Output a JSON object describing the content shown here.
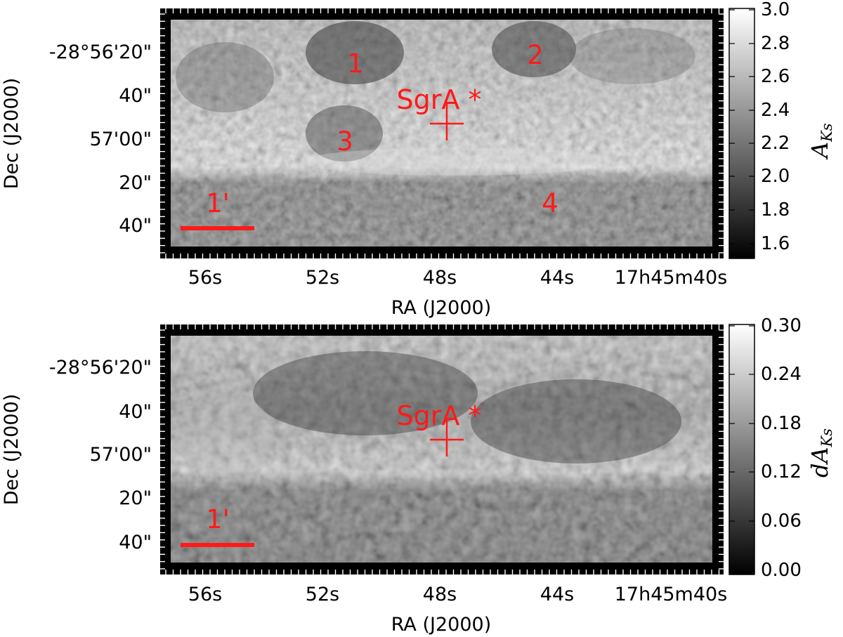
{
  "chart_data": [
    {
      "type": "heatmap",
      "title": "",
      "xlabel": "RA (J2000)",
      "ylabel": "Dec (J2000)",
      "x_ticks": [
        "56s",
        "52s",
        "48s",
        "44s",
        "17h45m40s"
      ],
      "y_ticks": [
        "-28°56'20\"",
        "40\"",
        "57'00\"",
        "20\"",
        "40\""
      ],
      "colorbar": {
        "label_main": "A",
        "label_sub": "Ks",
        "range": [
          1.5,
          3.0
        ],
        "ticks": [
          "3.0",
          "2.8",
          "2.6",
          "2.4",
          "2.2",
          "2.0",
          "1.8",
          "1.6"
        ],
        "colormap": "gray"
      },
      "annotations": [
        "1",
        "2",
        "3",
        "4",
        "SgrA *",
        "1'"
      ],
      "grid": false
    },
    {
      "type": "heatmap",
      "title": "",
      "xlabel": "RA (J2000)",
      "ylabel": "Dec (J2000)",
      "x_ticks": [
        "56s",
        "52s",
        "48s",
        "44s",
        "17h45m40s"
      ],
      "y_ticks": [
        "-28°56'20\"",
        "40\"",
        "57'00\"",
        "20\"",
        "40\""
      ],
      "colorbar": {
        "label_main": "dA",
        "label_sub": "Ks",
        "range": [
          0.0,
          0.3
        ],
        "ticks": [
          "0.30",
          "0.24",
          "0.18",
          "0.12",
          "0.06",
          "0.00"
        ],
        "colormap": "gray"
      },
      "annotations": [
        "SgrA *",
        "1'"
      ],
      "grid": false
    }
  ],
  "colors": {
    "annotation": "#ff1a1a",
    "frame": "#000000"
  }
}
